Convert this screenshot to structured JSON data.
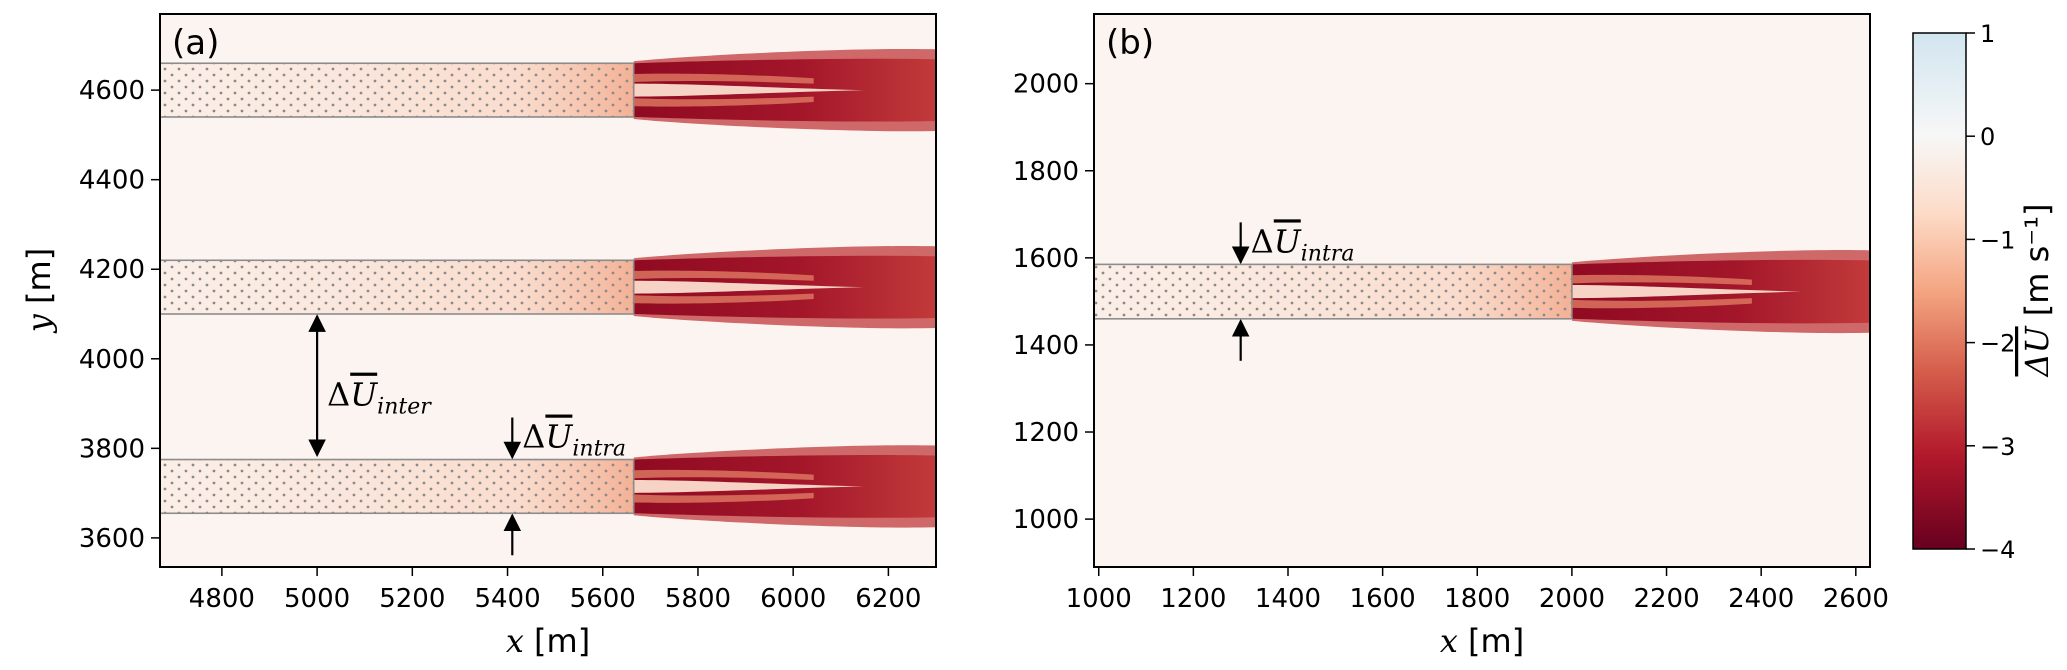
{
  "chart_data": [
    {
      "type": "heatmap",
      "panel_label": "(a)",
      "xlabel_var": "x",
      "xlabel_unit": "[m]",
      "ylabel_var": "y",
      "ylabel_unit": "[m]",
      "xlim": [
        4670,
        6300
      ],
      "ylim": [
        3535,
        4770
      ],
      "xticks": [
        4800,
        5000,
        5200,
        5400,
        5600,
        5800,
        6000,
        6200
      ],
      "yticks": [
        3600,
        3800,
        4000,
        4200,
        4400,
        4600
      ],
      "farms": [
        {
          "x_start": 4670,
          "x_end": 5665,
          "y_min": 4540,
          "y_max": 4660
        },
        {
          "x_start": 4670,
          "x_end": 5665,
          "y_min": 4100,
          "y_max": 4220
        },
        {
          "x_start": 4670,
          "x_end": 5665,
          "y_min": 3655,
          "y_max": 3775
        }
      ],
      "wake_x_end": 6300,
      "annotations": [
        {
          "symbol": "ΔU",
          "subscript": "inter",
          "x": 5000,
          "y_from": 3780,
          "y_to": 4100
        },
        {
          "symbol": "ΔU",
          "subscript": "intra",
          "x": 5410,
          "y_top": 3775,
          "y_bottom": 3655
        }
      ]
    },
    {
      "type": "heatmap",
      "panel_label": "(b)",
      "xlabel_var": "x",
      "xlabel_unit": "[m]",
      "xlim": [
        990,
        2630
      ],
      "ylim": [
        890,
        2160
      ],
      "xticks": [
        1000,
        1200,
        1400,
        1600,
        1800,
        2000,
        2200,
        2400,
        2600
      ],
      "yticks": [
        1000,
        1200,
        1400,
        1600,
        1800,
        2000
      ],
      "farms": [
        {
          "x_start": 990,
          "x_end": 2000,
          "y_min": 1460,
          "y_max": 1585
        }
      ],
      "wake_x_end": 2630,
      "annotations": [
        {
          "symbol": "ΔU",
          "subscript": "intra",
          "x": 1300,
          "y_top": 1585,
          "y_bottom": 1460
        }
      ]
    }
  ],
  "colorbar": {
    "label_symbol": "ΔU",
    "label_unit": "[m s⁻¹]",
    "vmin": -4,
    "vmax": 1,
    "ticks": [
      1,
      0,
      -1,
      -2,
      -3,
      -4
    ],
    "tick_labels": [
      "1",
      "0",
      "−1",
      "−2",
      "−3",
      "−4"
    ],
    "colormap": "RdBu_r",
    "colors": [
      "#67001f",
      "#b2182b",
      "#d6604d",
      "#f4a582",
      "#fddbc7",
      "#f7f7f7",
      "#d1e5f0"
    ]
  }
}
